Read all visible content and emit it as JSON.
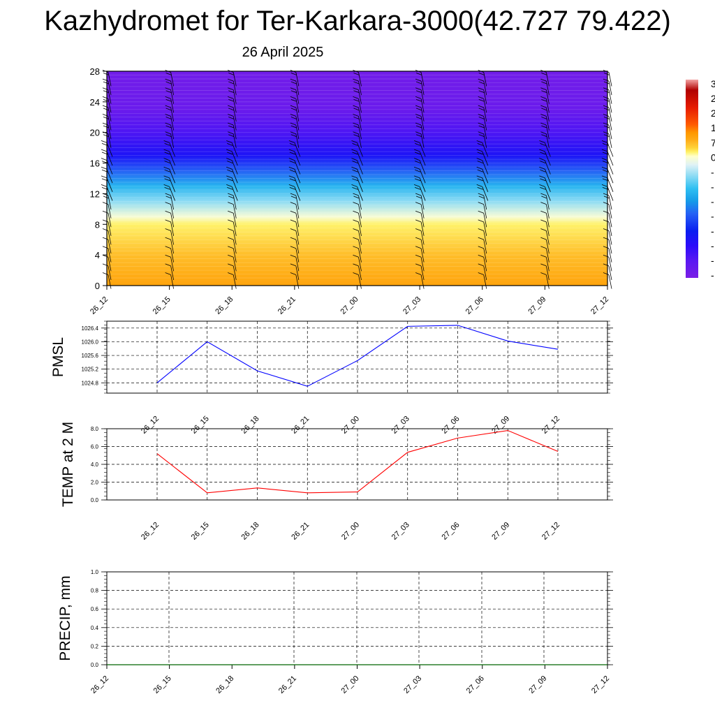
{
  "header": {
    "title": "Kazhydromet for Ter-Karkara-3000(42.727 79.422)",
    "date": "26 April 2025"
  },
  "colors": {
    "pmsl_line": "#0000ff",
    "temp_line": "#ff0000",
    "precip_line": "#006400",
    "grid": "#000000",
    "barb": "#000000"
  },
  "chart_data": [
    {
      "id": "cross-section",
      "type": "heatmap",
      "title": "",
      "x_ticks": [
        "26_12",
        "26_15",
        "26_18",
        "26_21",
        "27_00",
        "27_03",
        "27_06",
        "27_09",
        "27_12"
      ],
      "y_ticks": [
        0,
        4,
        8,
        12,
        16,
        20,
        24,
        28
      ],
      "ylim": [
        0,
        28
      ],
      "variable": "temperature",
      "temperature_profile": [
        {
          "level": 0,
          "value": 6
        },
        {
          "level": 4,
          "value": 3
        },
        {
          "level": 8,
          "value": -1
        },
        {
          "level": 9,
          "value": -4
        },
        {
          "level": 11,
          "value": -12
        },
        {
          "level": 13,
          "value": -20
        },
        {
          "level": 15,
          "value": -30
        },
        {
          "level": 17,
          "value": -42
        },
        {
          "level": 20,
          "value": -50
        },
        {
          "level": 23,
          "value": -56
        },
        {
          "level": 28,
          "value": -58
        }
      ],
      "wind_barbs": true,
      "colorbar_labels": [
        "3",
        "2",
        "2",
        "1",
        "7",
        "0",
        "-",
        "-",
        "-",
        "-",
        "-",
        "-",
        "-",
        "-"
      ]
    },
    {
      "id": "pmsl",
      "type": "line",
      "ylabel": "PMSL",
      "categories": [
        "26_12",
        "26_15",
        "26_18",
        "26_21",
        "27_00",
        "27_03",
        "27_06",
        "27_09",
        "27_12"
      ],
      "series": [
        {
          "values": [
            1024.8,
            1026.0,
            1025.15,
            1024.7,
            1025.45,
            1026.45,
            1026.48,
            1026.02,
            1025.78
          ]
        }
      ],
      "y_ticks": [
        "1024.8",
        "1025.2",
        "1025.6",
        "1026.0",
        "1026.4"
      ],
      "ylim": [
        1024.5,
        1026.6
      ],
      "grid": true
    },
    {
      "id": "temp2m",
      "type": "line",
      "ylabel": "TEMP at 2 M",
      "categories": [
        "26_12",
        "26_15",
        "26_18",
        "26_21",
        "27_00",
        "27_03",
        "27_06",
        "27_09",
        "27_12"
      ],
      "series": [
        {
          "values": [
            5.2,
            0.8,
            1.35,
            0.8,
            0.9,
            5.35,
            6.95,
            7.8,
            5.45
          ]
        }
      ],
      "y_ticks": [
        "0.0",
        "2.0",
        "4.0",
        "6.0",
        "8.0"
      ],
      "ylim": [
        0,
        8
      ],
      "grid": true
    },
    {
      "id": "precip",
      "type": "line",
      "ylabel": "PRECIP, mm",
      "categories": [
        "26_12",
        "26_15",
        "26_18",
        "26_21",
        "27_00",
        "27_03",
        "27_06",
        "27_09",
        "27_12"
      ],
      "series": [
        {
          "values": [
            0,
            0,
            0,
            0,
            0,
            0,
            0,
            0,
            0
          ]
        }
      ],
      "y_ticks": [
        "0.0",
        "0.2",
        "0.4",
        "0.6",
        "0.8",
        "1.0"
      ],
      "ylim": [
        0,
        1
      ],
      "grid": true
    }
  ]
}
